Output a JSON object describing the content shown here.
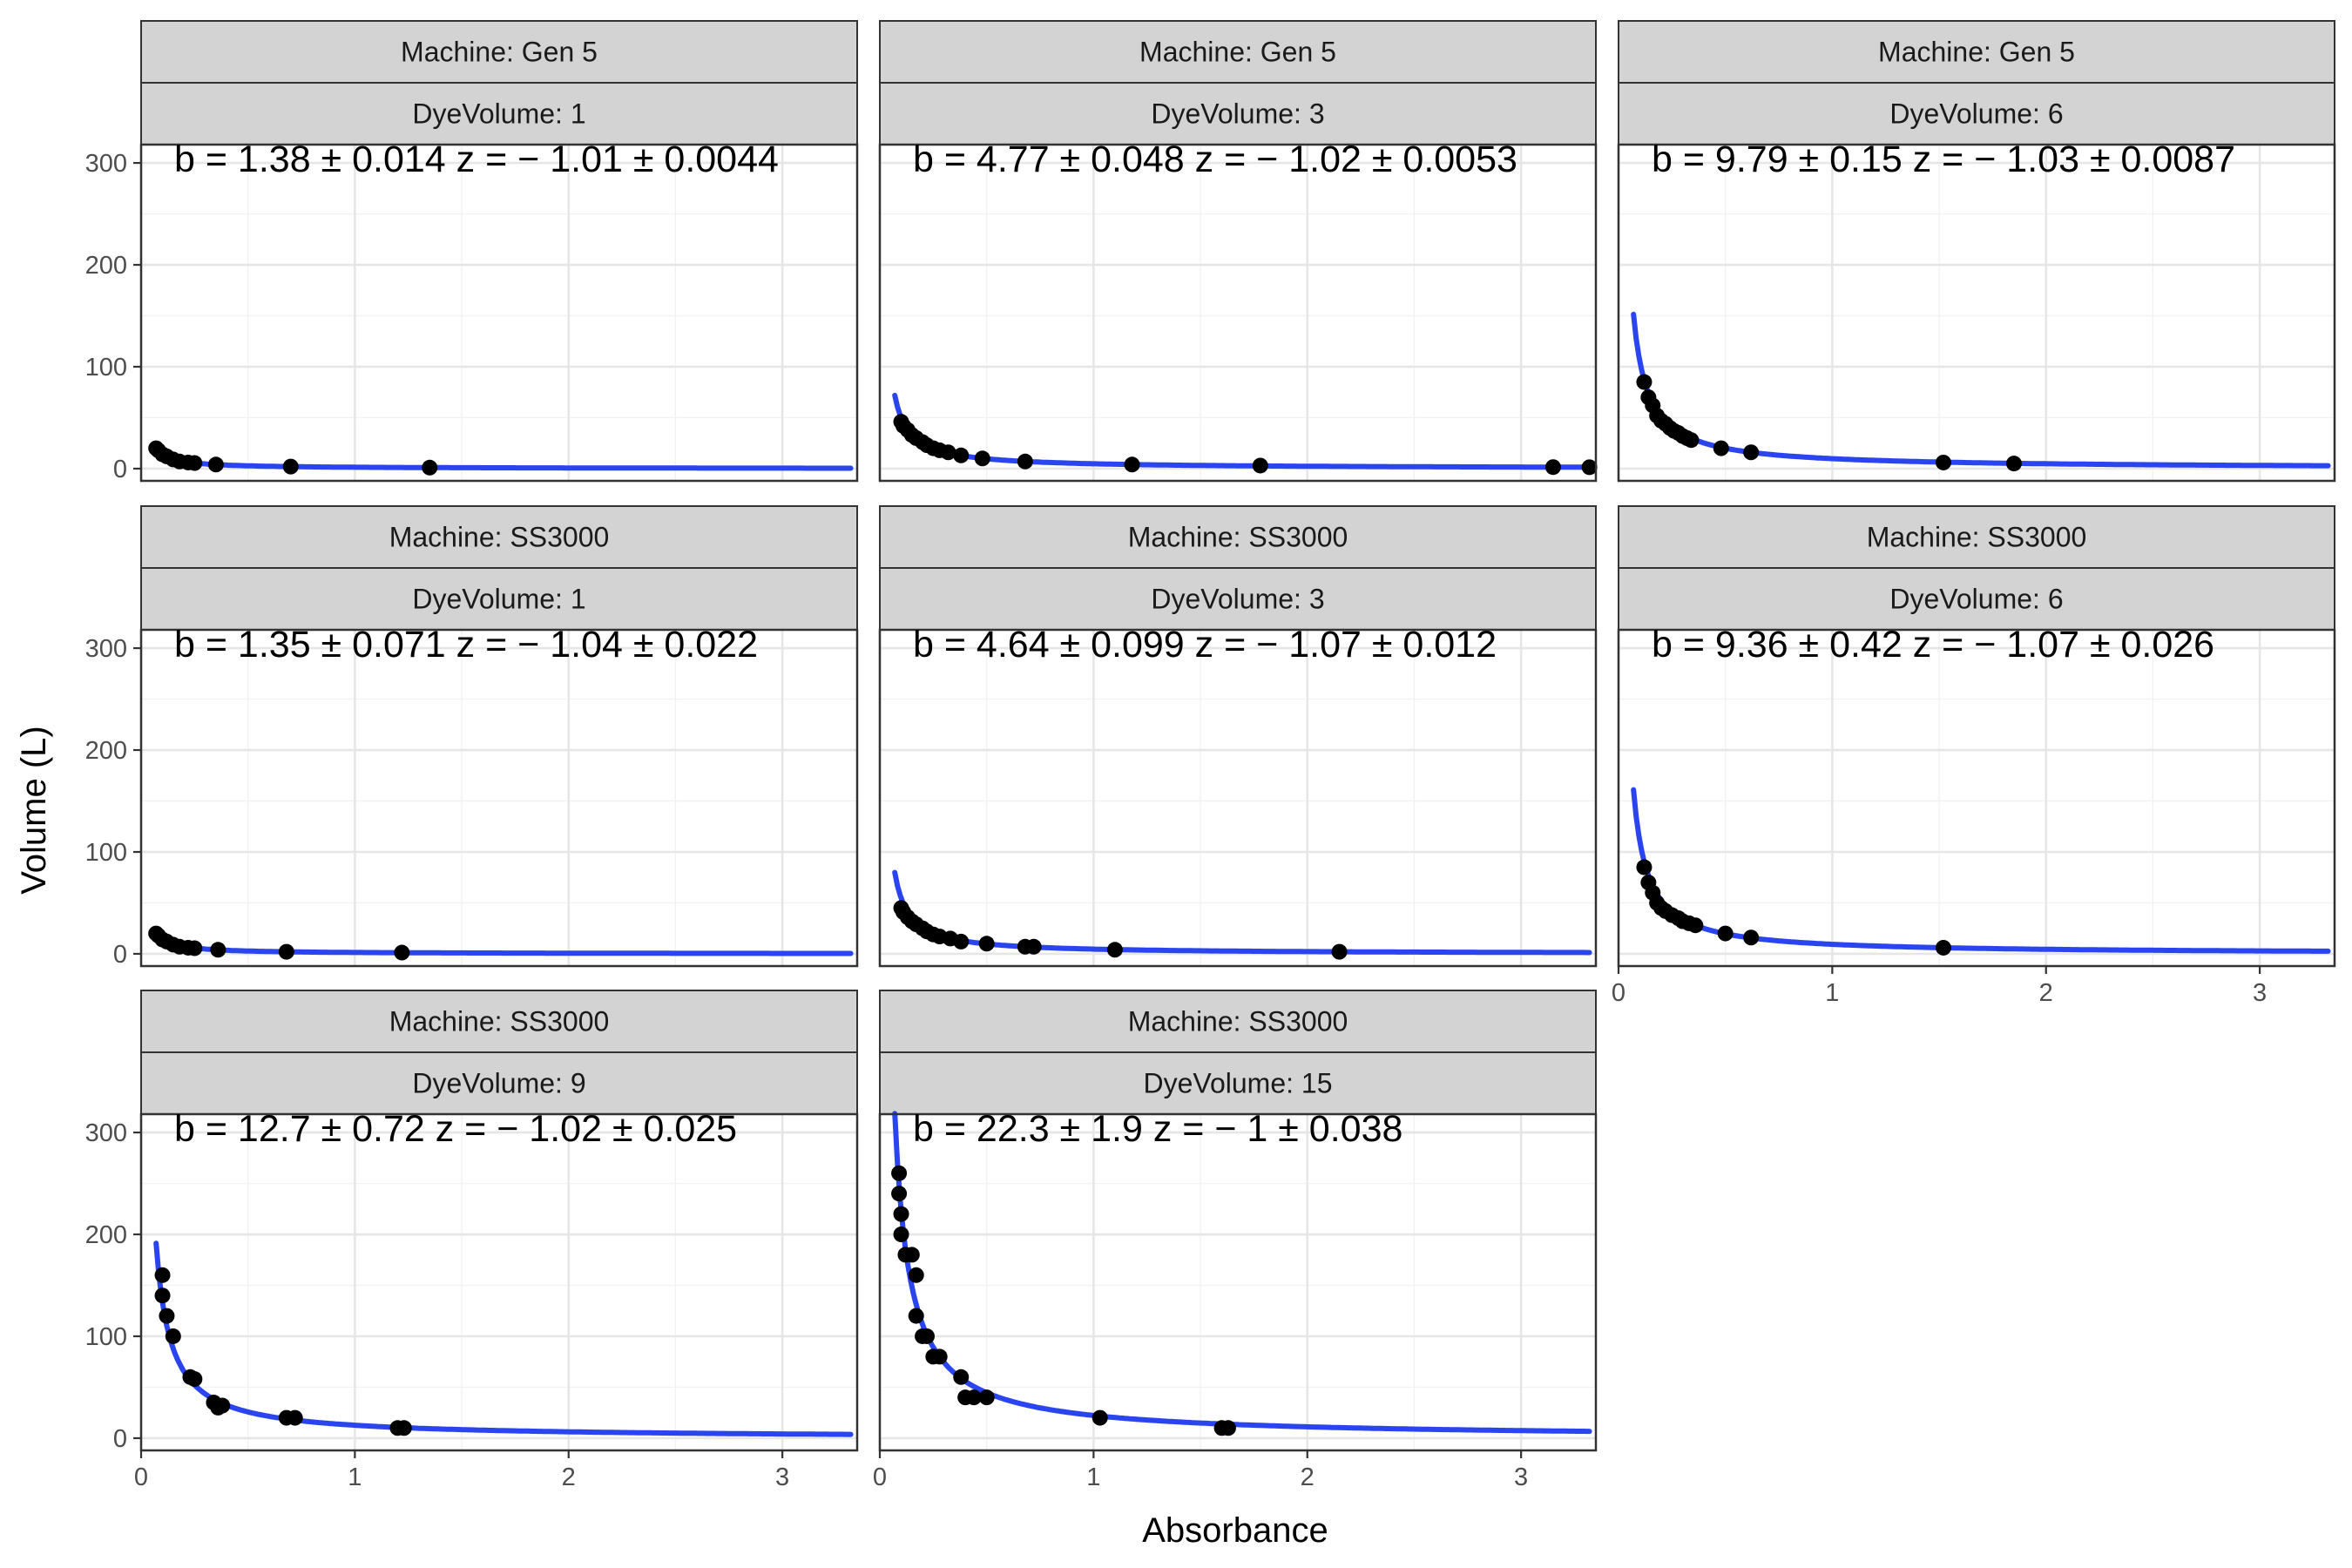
{
  "chart_data": {
    "type": "scatter",
    "xlabel": "Absorbance",
    "ylabel": "Volume (L)",
    "xlim": [
      0,
      3.35
    ],
    "ylim": [
      -12,
      318
    ],
    "x_ticks": [
      0,
      1,
      2,
      3
    ],
    "y_ticks": [
      0,
      100,
      200,
      300
    ],
    "grid": true,
    "fit_model": "Volume = b * Absorbance^z",
    "fit_x_range": [
      0.07,
      3.32
    ],
    "panels": [
      {
        "strip_machine": "Machine: Gen 5",
        "strip_dye": "DyeVolume: 1",
        "annotation": "b = 1.38 ± 0.014    z = − 1.01 ± 0.0044",
        "b": 1.38,
        "z": -1.01,
        "points": [
          [
            0.07,
            20
          ],
          [
            0.08,
            18
          ],
          [
            0.1,
            14
          ],
          [
            0.12,
            12
          ],
          [
            0.15,
            9
          ],
          [
            0.18,
            7
          ],
          [
            0.22,
            6
          ],
          [
            0.25,
            5.5
          ],
          [
            0.35,
            4
          ],
          [
            0.7,
            2
          ],
          [
            1.35,
            1
          ]
        ]
      },
      {
        "strip_machine": "Machine: Gen 5",
        "strip_dye": "DyeVolume: 3",
        "annotation": "b = 4.77 ± 0.048    z = − 1.02 ± 0.0053",
        "b": 4.77,
        "z": -1.02,
        "points": [
          [
            0.1,
            46
          ],
          [
            0.11,
            42
          ],
          [
            0.13,
            38
          ],
          [
            0.15,
            33
          ],
          [
            0.17,
            30
          ],
          [
            0.2,
            26
          ],
          [
            0.22,
            23
          ],
          [
            0.25,
            20
          ],
          [
            0.28,
            18
          ],
          [
            0.32,
            16
          ],
          [
            0.38,
            13
          ],
          [
            0.48,
            10
          ],
          [
            0.68,
            7
          ],
          [
            1.18,
            4
          ],
          [
            1.78,
            3
          ],
          [
            3.15,
            1.5
          ],
          [
            3.32,
            1.4
          ]
        ]
      },
      {
        "strip_machine": "Machine: Gen 5",
        "strip_dye": "DyeVolume: 6",
        "annotation": "b = 9.79 ± 0.15    z = − 1.03 ± 0.0087",
        "b": 9.79,
        "z": -1.03,
        "points": [
          [
            0.12,
            85
          ],
          [
            0.14,
            70
          ],
          [
            0.16,
            62
          ],
          [
            0.18,
            52
          ],
          [
            0.2,
            47
          ],
          [
            0.22,
            44
          ],
          [
            0.24,
            40
          ],
          [
            0.26,
            37
          ],
          [
            0.28,
            35
          ],
          [
            0.3,
            32
          ],
          [
            0.32,
            30
          ],
          [
            0.34,
            28
          ],
          [
            0.48,
            20
          ],
          [
            0.62,
            16
          ],
          [
            1.52,
            6
          ],
          [
            1.85,
            5
          ]
        ]
      },
      {
        "strip_machine": "Machine: SS3000",
        "strip_dye": "DyeVolume: 1",
        "annotation": "b = 1.35 ± 0.071    z = − 1.04 ± 0.022",
        "b": 1.35,
        "z": -1.04,
        "points": [
          [
            0.07,
            20
          ],
          [
            0.08,
            18
          ],
          [
            0.1,
            14
          ],
          [
            0.12,
            12
          ],
          [
            0.15,
            9
          ],
          [
            0.18,
            7
          ],
          [
            0.22,
            6
          ],
          [
            0.25,
            5.5
          ],
          [
            0.36,
            4
          ],
          [
            0.68,
            2
          ],
          [
            1.22,
            1.2
          ]
        ]
      },
      {
        "strip_machine": "Machine: SS3000",
        "strip_dye": "DyeVolume: 3",
        "annotation": "b = 4.64 ± 0.099    z = − 1.07 ± 0.012",
        "b": 4.64,
        "z": -1.07,
        "points": [
          [
            0.1,
            45
          ],
          [
            0.11,
            41
          ],
          [
            0.13,
            36
          ],
          [
            0.15,
            32
          ],
          [
            0.17,
            29
          ],
          [
            0.2,
            25
          ],
          [
            0.22,
            22
          ],
          [
            0.25,
            19
          ],
          [
            0.28,
            17
          ],
          [
            0.33,
            15
          ],
          [
            0.38,
            12
          ],
          [
            0.5,
            10
          ],
          [
            0.68,
            7
          ],
          [
            0.72,
            7
          ],
          [
            1.1,
            4
          ],
          [
            2.15,
            2
          ]
        ]
      },
      {
        "strip_machine": "Machine: SS3000",
        "strip_dye": "DyeVolume: 6",
        "annotation": "b = 9.36 ± 0.42    z = − 1.07 ± 0.026",
        "b": 9.36,
        "z": -1.07,
        "points": [
          [
            0.12,
            85
          ],
          [
            0.14,
            70
          ],
          [
            0.16,
            60
          ],
          [
            0.18,
            50
          ],
          [
            0.2,
            45
          ],
          [
            0.22,
            42
          ],
          [
            0.25,
            38
          ],
          [
            0.28,
            35
          ],
          [
            0.3,
            32
          ],
          [
            0.33,
            30
          ],
          [
            0.36,
            28
          ],
          [
            0.5,
            20
          ],
          [
            0.62,
            16
          ],
          [
            1.52,
            6
          ]
        ]
      },
      {
        "strip_machine": "Machine: SS3000",
        "strip_dye": "DyeVolume: 9",
        "annotation": "b = 12.7 ± 0.72    z = − 1.02 ± 0.025",
        "b": 12.7,
        "z": -1.02,
        "points": [
          [
            0.1,
            160
          ],
          [
            0.1,
            140
          ],
          [
            0.12,
            120
          ],
          [
            0.15,
            100
          ],
          [
            0.23,
            60
          ],
          [
            0.25,
            58
          ],
          [
            0.34,
            35
          ],
          [
            0.36,
            30
          ],
          [
            0.38,
            32
          ],
          [
            0.68,
            20
          ],
          [
            0.72,
            20
          ],
          [
            1.2,
            10
          ],
          [
            1.23,
            10
          ]
        ]
      },
      {
        "strip_machine": "Machine: SS3000",
        "strip_dye": "DyeVolume: 15",
        "annotation": "b = 22.3 ± 1.9    z = − 1 ± 0.038",
        "b": 22.3,
        "z": -1.0,
        "points": [
          [
            0.09,
            260
          ],
          [
            0.09,
            240
          ],
          [
            0.1,
            220
          ],
          [
            0.1,
            200
          ],
          [
            0.12,
            180
          ],
          [
            0.15,
            180
          ],
          [
            0.17,
            160
          ],
          [
            0.17,
            120
          ],
          [
            0.2,
            100
          ],
          [
            0.22,
            100
          ],
          [
            0.25,
            80
          ],
          [
            0.28,
            80
          ],
          [
            0.38,
            60
          ],
          [
            0.4,
            40
          ],
          [
            0.44,
            40
          ],
          [
            0.5,
            40
          ],
          [
            1.03,
            20
          ],
          [
            1.6,
            10
          ],
          [
            1.63,
            10
          ]
        ]
      }
    ]
  }
}
